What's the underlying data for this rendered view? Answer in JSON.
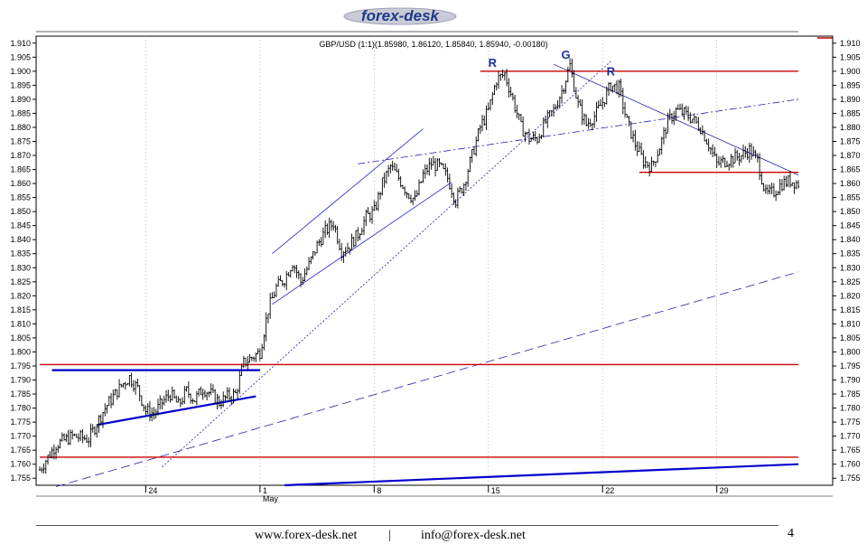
{
  "header": {
    "logo_text": "forex-desk"
  },
  "footer": {
    "website": "www.forex-desk.net",
    "separator": "|",
    "email": "info@forex-desk.net",
    "page_number": "4"
  },
  "chart_data": {
    "type": "candlestick",
    "title": "GBP/USD (1:1)(1.85980, 1.86120, 1.85840, 1.85940, -0.00180)",
    "ylim": [
      1.7525,
      1.9125
    ],
    "y_ticks": [
      "1.910",
      "1.905",
      "1.900",
      "1.895",
      "1.890",
      "1.885",
      "1.880",
      "1.875",
      "1.870",
      "1.865",
      "1.860",
      "1.855",
      "1.850",
      "1.845",
      "1.840",
      "1.835",
      "1.830",
      "1.825",
      "1.820",
      "1.815",
      "1.810",
      "1.805",
      "1.800",
      "1.795",
      "1.790",
      "1.785",
      "1.780",
      "1.775",
      "1.770",
      "1.765",
      "1.760",
      "1.755"
    ],
    "x_ticks": [
      {
        "label": "24",
        "month": ""
      },
      {
        "label": "1",
        "month": "May"
      },
      {
        "label": "8",
        "month": ""
      },
      {
        "label": "15",
        "month": ""
      },
      {
        "label": "22",
        "month": ""
      },
      {
        "label": "29",
        "month": ""
      }
    ],
    "price_path": [
      [
        0,
        1.758
      ],
      [
        2,
        1.767
      ],
      [
        4,
        1.77
      ],
      [
        6,
        1.769
      ],
      [
        8,
        1.78
      ],
      [
        10,
        1.788
      ],
      [
        11,
        1.791
      ],
      [
        12,
        1.787
      ],
      [
        13,
        1.779
      ],
      [
        14,
        1.778
      ],
      [
        15,
        1.782
      ],
      [
        16,
        1.785
      ],
      [
        17,
        1.781
      ],
      [
        18,
        1.786
      ],
      [
        19,
        1.783
      ],
      [
        20,
        1.787
      ],
      [
        21,
        1.785
      ],
      [
        22,
        1.782
      ],
      [
        23,
        1.784
      ],
      [
        24,
        1.785
      ],
      [
        25,
        1.796
      ],
      [
        26,
        1.798
      ],
      [
        27,
        1.8
      ],
      [
        28,
        1.815
      ],
      [
        29,
        1.823
      ],
      [
        30,
        1.826
      ],
      [
        31,
        1.832
      ],
      [
        32,
        1.825
      ],
      [
        33,
        1.831
      ],
      [
        34,
        1.838
      ],
      [
        35,
        1.843
      ],
      [
        36,
        1.846
      ],
      [
        37,
        1.836
      ],
      [
        38,
        1.838
      ],
      [
        39,
        1.842
      ],
      [
        40,
        1.848
      ],
      [
        41,
        1.85
      ],
      [
        42,
        1.86
      ],
      [
        43,
        1.866
      ],
      [
        44,
        1.862
      ],
      [
        45,
        1.857
      ],
      [
        46,
        1.854
      ],
      [
        47,
        1.863
      ],
      [
        48,
        1.867
      ],
      [
        49,
        1.866
      ],
      [
        50,
        1.862
      ],
      [
        51,
        1.854
      ],
      [
        52,
        1.86
      ],
      [
        53,
        1.87
      ],
      [
        54,
        1.88
      ],
      [
        55,
        1.886
      ],
      [
        56,
        1.897
      ],
      [
        57,
        1.899
      ],
      [
        58,
        1.89
      ],
      [
        59,
        1.88
      ],
      [
        60,
        1.876
      ],
      [
        61,
        1.876
      ],
      [
        62,
        1.882
      ],
      [
        63,
        1.886
      ],
      [
        64,
        1.893
      ],
      [
        65,
        1.902
      ],
      [
        66,
        1.888
      ],
      [
        67,
        1.881
      ],
      [
        68,
        1.884
      ],
      [
        69,
        1.889
      ],
      [
        70,
        1.895
      ],
      [
        71,
        1.894
      ],
      [
        72,
        1.882
      ],
      [
        73,
        1.874
      ],
      [
        74,
        1.868
      ],
      [
        75,
        1.866
      ],
      [
        76,
        1.873
      ],
      [
        77,
        1.882
      ],
      [
        78,
        1.886
      ],
      [
        79,
        1.885
      ],
      [
        80,
        1.883
      ],
      [
        81,
        1.88
      ],
      [
        82,
        1.874
      ],
      [
        83,
        1.867
      ],
      [
        84,
        1.868
      ],
      [
        85,
        1.869
      ],
      [
        86,
        1.87
      ],
      [
        87,
        1.872
      ],
      [
        88,
        1.868
      ],
      [
        89,
        1.856
      ],
      [
        90,
        1.857
      ],
      [
        91,
        1.86
      ],
      [
        92,
        1.861
      ],
      [
        93,
        1.86
      ]
    ],
    "x_index_range": [
      0,
      93
    ],
    "ticks_x_index": [
      13,
      27,
      41,
      55,
      69,
      83
    ],
    "annotations": [
      {
        "text": "R",
        "x": 55.5,
        "y": 1.9015
      },
      {
        "text": "G",
        "x": 64.5,
        "y": 1.9045
      },
      {
        "text": "R",
        "x": 70,
        "y": 1.8985
      }
    ],
    "lines": [
      {
        "from": [
          1.5,
          1.7935
        ],
        "to": [
          27,
          1.7935
        ],
        "color": "#0000cc",
        "width": 2.2,
        "style": "solid"
      },
      {
        "from": [
          7,
          1.774
        ],
        "to": [
          26.5,
          1.7842
        ],
        "color": "#0000cc",
        "width": 2.2,
        "style": "solid"
      },
      {
        "from": [
          28.5,
          1.835
        ],
        "to": [
          47,
          1.8795
        ],
        "color": "#2222cc",
        "width": 0.8,
        "style": "solid"
      },
      {
        "from": [
          28.5,
          1.817
        ],
        "to": [
          50.5,
          1.8605
        ],
        "color": "#2222cc",
        "width": 0.8,
        "style": "solid"
      },
      {
        "from": [
          15,
          1.759
        ],
        "to": [
          70,
          1.9035
        ],
        "color": "#2222aa",
        "width": 0.8,
        "style": "dot"
      },
      {
        "from": [
          39,
          1.867
        ],
        "to": [
          93,
          1.89
        ],
        "color": "#2222aa",
        "width": 0.8,
        "style": "dashdot"
      },
      {
        "from": [
          2,
          1.752
        ],
        "to": [
          93,
          1.8285
        ],
        "color": "#2222aa",
        "width": 0.8,
        "style": "dash"
      },
      {
        "from": [
          30,
          1.7525
        ],
        "to": [
          93,
          1.76
        ],
        "color": "#0000cc",
        "width": 2.2,
        "style": "solid"
      },
      {
        "from": [
          63,
          1.9025
        ],
        "to": [
          93,
          1.863
        ],
        "color": "#2222aa",
        "width": 0.8,
        "style": "solid"
      },
      {
        "from": [
          54,
          1.9
        ],
        "to": [
          93,
          1.9
        ],
        "color": "#cc0000",
        "width": 1.4,
        "style": "solid"
      },
      {
        "from": [
          73.5,
          1.864
        ],
        "to": [
          93,
          1.864
        ],
        "color": "#cc0000",
        "width": 1.4,
        "style": "solid"
      },
      {
        "from": [
          0,
          1.7955
        ],
        "to": [
          93,
          1.7955
        ],
        "color": "#cc0000",
        "width": 1.4,
        "style": "solid"
      },
      {
        "from": [
          0,
          1.7625
        ],
        "to": [
          93,
          1.7625
        ],
        "color": "#cc0000",
        "width": 1.4,
        "style": "solid"
      }
    ]
  }
}
